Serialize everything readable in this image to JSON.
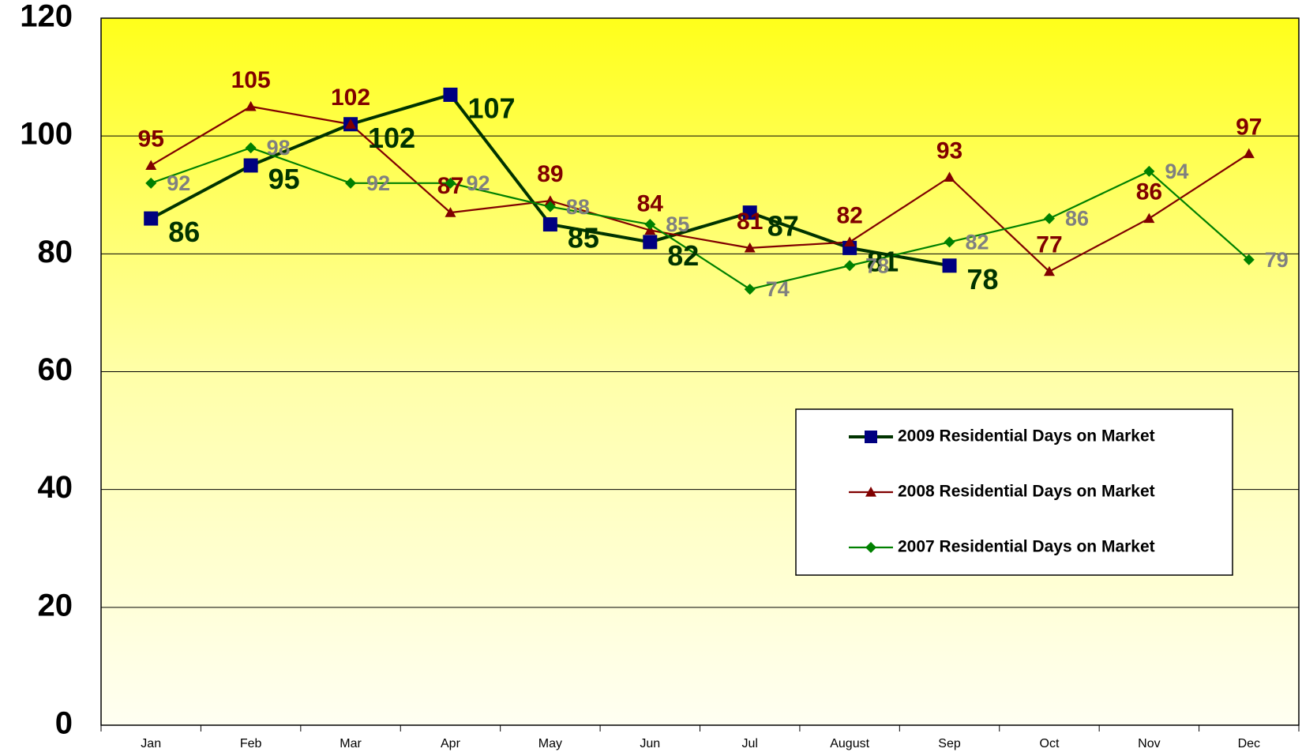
{
  "chart_data": {
    "type": "line",
    "categories": [
      "Jan",
      "Feb",
      "Mar",
      "Apr",
      "May",
      "Jun",
      "Jul",
      "August",
      "Sep",
      "Oct",
      "Nov",
      "Dec"
    ],
    "series": [
      {
        "name": "2009 Residential Days on Market",
        "color": "#003300",
        "marker_color": "#000080",
        "marker": "square",
        "label_color": "#003300",
        "values": [
          86,
          95,
          102,
          107,
          85,
          82,
          87,
          81,
          78,
          null,
          null,
          null
        ]
      },
      {
        "name": "2008 Residential Days on Market",
        "color": "#800000",
        "marker_color": "#800000",
        "marker": "triangle",
        "label_color": "#800000",
        "values": [
          95,
          105,
          102,
          87,
          89,
          84,
          81,
          82,
          93,
          77,
          86,
          97
        ]
      },
      {
        "name": "2007 Residential Days on Market",
        "color": "#008000",
        "marker_color": "#008000",
        "marker": "diamond",
        "label_color": "#808080",
        "values": [
          92,
          98,
          92,
          92,
          88,
          85,
          74,
          78,
          82,
          86,
          94,
          79
        ]
      }
    ],
    "ylim": [
      0,
      120
    ],
    "yticks": [
      0,
      20,
      40,
      60,
      80,
      100,
      120
    ],
    "grid": true
  }
}
